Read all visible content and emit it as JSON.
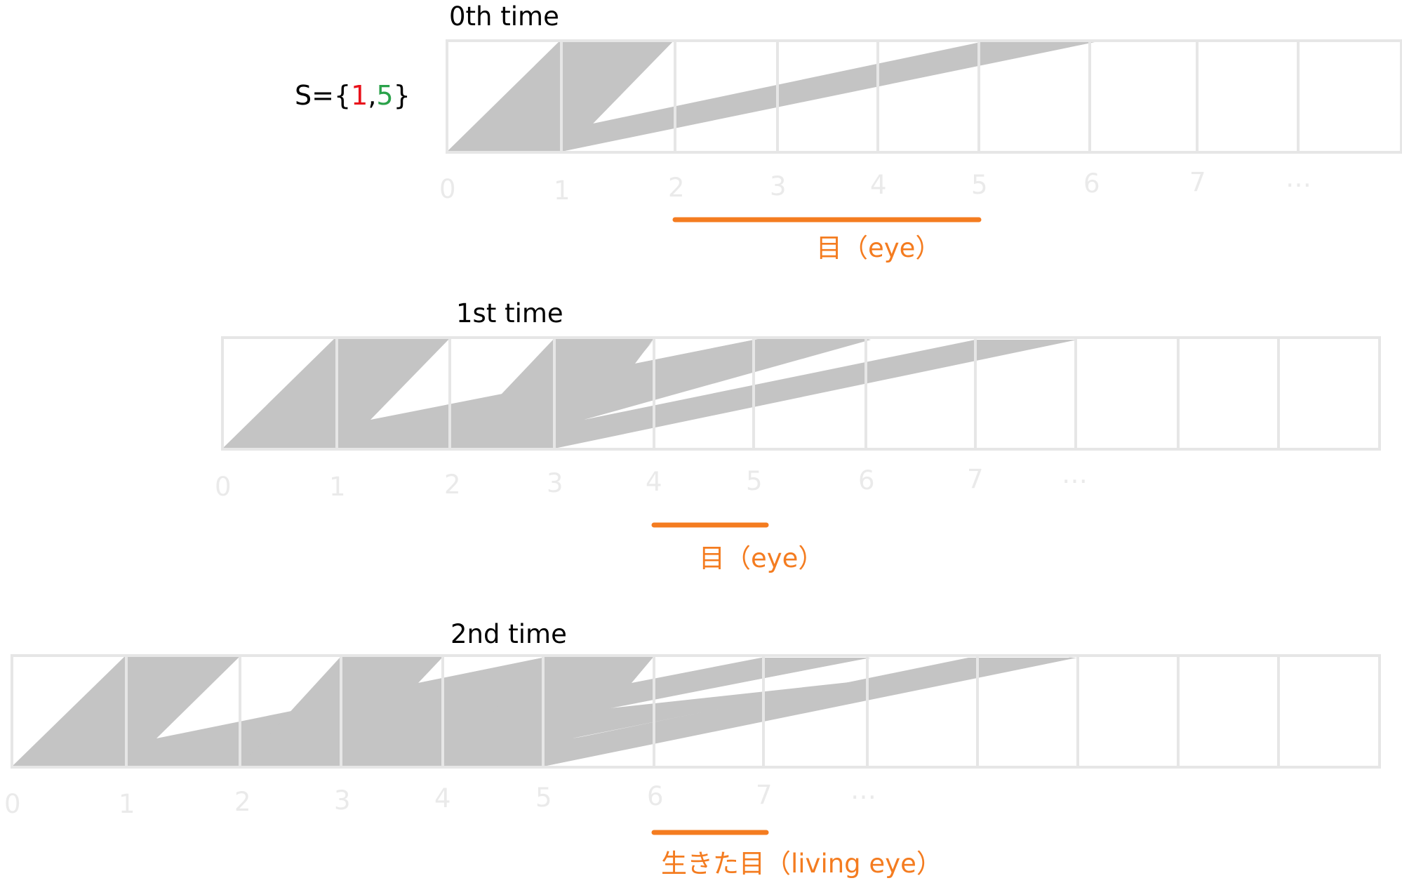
{
  "set": {
    "prefix": "S={",
    "first": "1",
    "separator": ",",
    "second": "5",
    "suffix": "}",
    "colors": {
      "prefix": "#000000",
      "first": "#e8121b",
      "second": "#2aa24a"
    }
  },
  "colors": {
    "grid": "#e6e6e6",
    "shape": "#c4c4c4",
    "tick": "#eaeaea",
    "title": "#000000",
    "eye": "#f47c20"
  },
  "rows": [
    {
      "title": "0th time",
      "ticks": [
        "0",
        "1",
        "2",
        "3",
        "4",
        "5",
        "6",
        "7",
        "…"
      ],
      "eye_label": "目（eye）"
    },
    {
      "title": "1st time",
      "ticks": [
        "0",
        "1",
        "2",
        "3",
        "4",
        "5",
        "6",
        "7",
        "…"
      ],
      "eye_label": "目（eye）"
    },
    {
      "title": "2nd time",
      "ticks": [
        "0",
        "1",
        "2",
        "3",
        "4",
        "5",
        "6",
        "7",
        "…"
      ],
      "eye_label": "生きた目（living eye）"
    }
  ]
}
